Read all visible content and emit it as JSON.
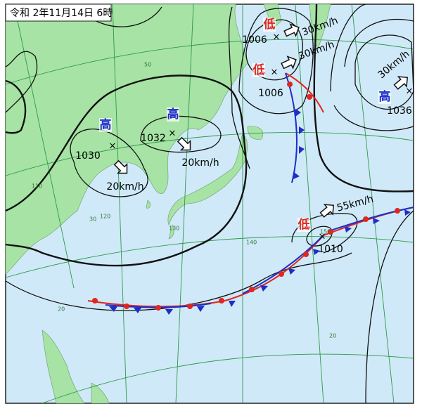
{
  "title": "令和 2年11月14日 6時",
  "systems": [
    {
      "kind": "低",
      "pressure": "1006",
      "speed": "30km/h"
    },
    {
      "kind": "低",
      "pressure": "1006",
      "speed": "30km/h"
    },
    {
      "kind": "高",
      "pressure": "1036",
      "speed": "30km/h"
    },
    {
      "kind": "高",
      "pressure": "1030",
      "speed": "20km/h"
    },
    {
      "kind": "高",
      "pressure": "1032",
      "speed": "20km/h"
    },
    {
      "kind": "低",
      "pressure": "1010",
      "speed": "55km/h"
    }
  ],
  "grid_labels": [
    "50",
    "110",
    "120",
    "130",
    "140",
    "150",
    "30",
    "20",
    "20"
  ]
}
